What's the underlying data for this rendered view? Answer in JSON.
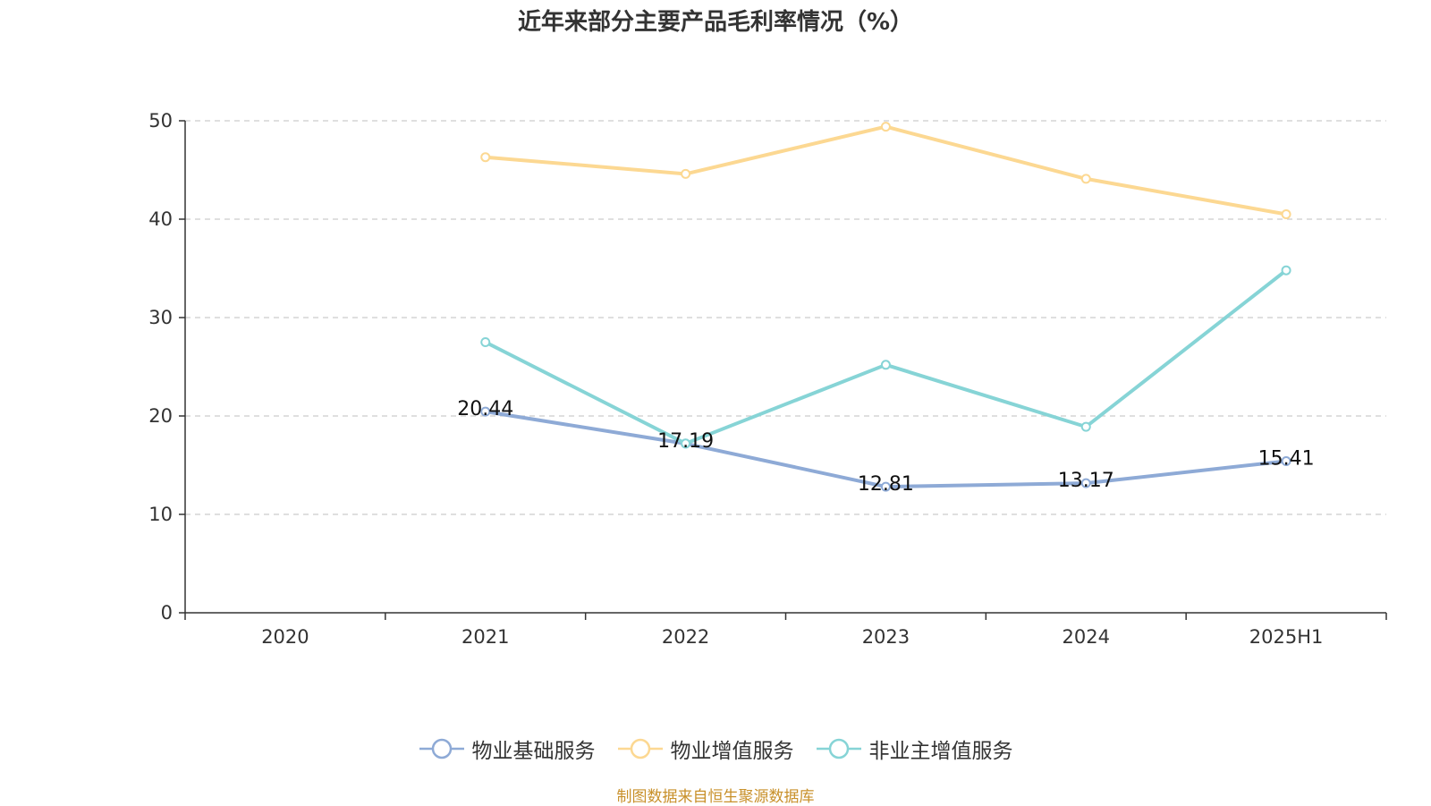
{
  "title": "近年来部分主要产品毛利率情况（%）",
  "source": "制图数据来自恒生聚源数据库",
  "chart_data": {
    "type": "line",
    "title": "近年来部分主要产品毛利率情况（%）",
    "categories": [
      "2020",
      "2021",
      "2022",
      "2023",
      "2024",
      "2025H1"
    ],
    "ylim": [
      0,
      50
    ],
    "yticks": [
      0,
      10,
      20,
      30,
      40,
      50
    ],
    "grid": true,
    "legend_position": "bottom",
    "series": [
      {
        "name": "物业基础服务",
        "color": "#8eaad6",
        "values": [
          null,
          20.44,
          17.19,
          12.81,
          13.17,
          15.41
        ],
        "show_labels": true
      },
      {
        "name": "物业增值服务",
        "color": "#fcd892",
        "values": [
          null,
          46.3,
          44.6,
          49.4,
          44.1,
          40.5
        ],
        "show_labels": false
      },
      {
        "name": "非业主增值服务",
        "color": "#86d4d6",
        "values": [
          null,
          27.5,
          17.2,
          25.2,
          18.9,
          34.8
        ],
        "show_labels": false
      }
    ]
  }
}
